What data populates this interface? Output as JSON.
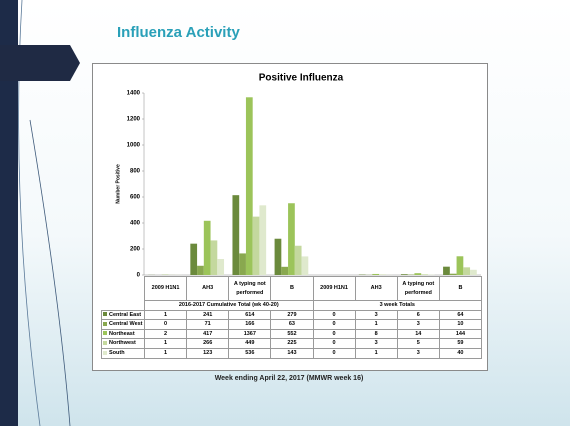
{
  "slide": {
    "title": "Influenza Activity",
    "footer": "Week ending April 22, 2017 (MMWR week 16)"
  },
  "chart_data": {
    "type": "bar",
    "title": "Positive Influenza",
    "ylabel": "Number Positive",
    "categories": [
      "2009 H1N1",
      "AH3",
      "A typing not performed",
      "B",
      "2009 H1N1",
      "AH3",
      "A typing not performed",
      "B"
    ],
    "groups": [
      "2016-2017 Cumulative Total (wk 40-20)",
      "3 week Totals"
    ],
    "series": [
      {
        "name": "Central East",
        "color": "#6b8a3c",
        "values": [
          1,
          241,
          614,
          279,
          0,
          3,
          6,
          64
        ]
      },
      {
        "name": "Central West",
        "color": "#89a84f",
        "values": [
          0,
          71,
          166,
          63,
          0,
          1,
          3,
          10
        ]
      },
      {
        "name": "Northeast",
        "color": "#9cc45a",
        "values": [
          2,
          417,
          1367,
          552,
          0,
          8,
          14,
          144
        ]
      },
      {
        "name": "Northwest",
        "color": "#c4d89e",
        "values": [
          1,
          266,
          449,
          225,
          0,
          3,
          5,
          59
        ]
      },
      {
        "name": "South",
        "color": "#dfe9cd",
        "values": [
          1,
          123,
          536,
          143,
          0,
          1,
          3,
          40
        ]
      }
    ],
    "ylim": [
      0,
      1400
    ],
    "yticks": [
      0,
      200,
      400,
      600,
      800,
      1000,
      1200,
      1400
    ],
    "grid": false
  }
}
